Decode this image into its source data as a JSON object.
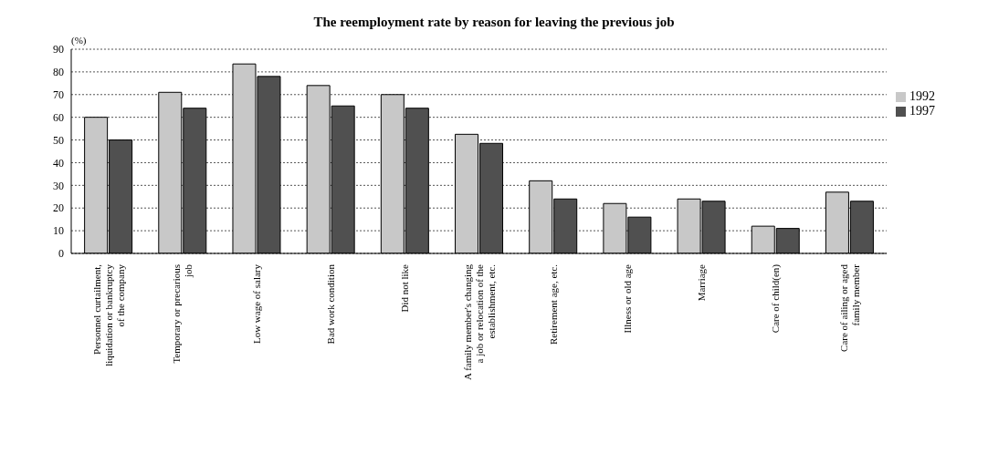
{
  "chart_data": {
    "type": "bar",
    "title": "The reemployment rate by reason for leaving the previous job",
    "ylabel": "(%)",
    "categories": [
      "Personnel curtailment, liquidation or bankruptcy of the company",
      "Temporary or precarious job",
      "Low wage of salary",
      "Bad work condition",
      "Did not like",
      "A family member's changing a job or relocation of the establishment, etc.",
      "Retirement age, etc.",
      "Illness or old age",
      "Marriage",
      "Care of child(en)",
      "Care of ailing or aged family member"
    ],
    "series": [
      {
        "name": "1992",
        "color": "#c8c8c8",
        "values": [
          60,
          71,
          83.5,
          74,
          70,
          52.5,
          32,
          22,
          24,
          12,
          27
        ]
      },
      {
        "name": "1997",
        "color": "#505050",
        "values": [
          50,
          64,
          78,
          65,
          64,
          48.5,
          24,
          16,
          23,
          11,
          23
        ]
      }
    ],
    "ylim": [
      0,
      90
    ],
    "yticks": [
      0,
      10,
      20,
      30,
      40,
      50,
      60,
      70,
      80,
      90
    ],
    "grid": "y",
    "legend": "right"
  }
}
